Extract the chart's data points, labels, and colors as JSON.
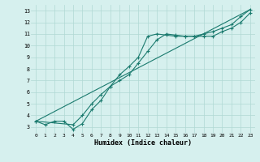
{
  "xlabel": "Humidex (Indice chaleur)",
  "bg_color": "#d6f0ee",
  "grid_color": "#b0d8d4",
  "line_color": "#1a7a6e",
  "xlim": [
    -0.5,
    23.5
  ],
  "ylim": [
    2.5,
    13.5
  ],
  "xticks": [
    0,
    1,
    2,
    3,
    4,
    5,
    6,
    7,
    8,
    9,
    10,
    11,
    12,
    13,
    14,
    15,
    16,
    17,
    18,
    19,
    20,
    21,
    22,
    23
  ],
  "yticks": [
    3,
    4,
    5,
    6,
    7,
    8,
    9,
    10,
    11,
    12,
    13
  ],
  "line1_x": [
    0,
    1,
    2,
    3,
    4,
    5,
    6,
    7,
    8,
    9,
    10,
    11,
    12,
    13,
    14,
    15,
    16,
    17,
    18,
    19,
    20,
    21,
    22,
    23
  ],
  "line1_y": [
    3.5,
    3.2,
    3.5,
    3.5,
    2.8,
    3.3,
    4.5,
    5.3,
    6.5,
    7.5,
    8.2,
    9.0,
    10.8,
    11.0,
    10.9,
    10.8,
    10.8,
    10.8,
    11.0,
    11.2,
    11.5,
    11.8,
    12.5,
    13.1
  ],
  "line2_x": [
    0,
    4,
    5,
    6,
    7,
    8,
    9,
    10,
    11,
    12,
    13,
    14,
    15,
    16,
    17,
    18,
    19,
    20,
    21,
    22,
    23
  ],
  "line2_y": [
    3.5,
    3.2,
    4.0,
    5.0,
    5.8,
    6.5,
    7.0,
    7.5,
    8.5,
    9.5,
    10.5,
    11.0,
    10.9,
    10.8,
    10.8,
    10.8,
    10.8,
    11.2,
    11.5,
    12.0,
    12.8
  ],
  "line3_x": [
    0,
    23
  ],
  "line3_y": [
    3.5,
    13.1
  ]
}
